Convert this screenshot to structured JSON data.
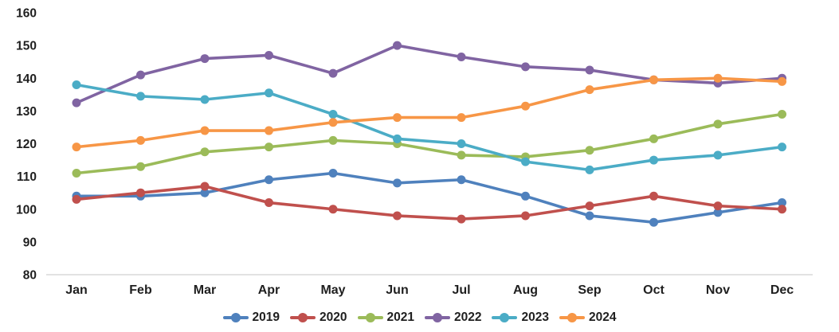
{
  "chart_data": {
    "type": "line",
    "title": "",
    "xlabel": "",
    "ylabel": "",
    "categories": [
      "Jan",
      "Feb",
      "Mar",
      "Apr",
      "May",
      "Jun",
      "Jul",
      "Aug",
      "Sep",
      "Oct",
      "Nov",
      "Dec"
    ],
    "series": [
      {
        "name": "2019",
        "color": "#4F81BD",
        "values": [
          104,
          104,
          105,
          109,
          111,
          108,
          109,
          104,
          98,
          96,
          99,
          102
        ]
      },
      {
        "name": "2020",
        "color": "#C0504D",
        "values": [
          103,
          105,
          107,
          102,
          100,
          98,
          97,
          98,
          101,
          104,
          101,
          100
        ]
      },
      {
        "name": "2021",
        "color": "#9BBB59",
        "values": [
          111,
          113,
          117.5,
          119,
          121,
          120,
          116.5,
          116,
          118,
          121.5,
          126,
          129
        ]
      },
      {
        "name": "2022",
        "color": "#8064A2",
        "values": [
          132.5,
          141,
          146,
          147,
          141.5,
          150,
          146.5,
          143.5,
          142.5,
          139.5,
          138.5,
          140
        ]
      },
      {
        "name": "2023",
        "color": "#4BACC6",
        "values": [
          138,
          134.5,
          133.5,
          135.5,
          129,
          121.5,
          120,
          114.5,
          112,
          115,
          116.5,
          119
        ]
      },
      {
        "name": "2024",
        "color": "#F79646",
        "values": [
          119,
          121,
          124,
          124,
          126.5,
          128,
          128,
          131.5,
          136.5,
          139.5,
          140,
          139
        ]
      }
    ],
    "ylim": [
      80,
      160
    ],
    "ytick_step": 10,
    "ytick_labels": [
      "160",
      "150",
      "140",
      "130",
      "120",
      "110",
      "100",
      "90",
      "80"
    ],
    "grid": false,
    "legend_position": "bottom",
    "axis_line_color": "#D9D9D9",
    "text_color": "#1f1f1f",
    "background_color": "#ffffff"
  }
}
